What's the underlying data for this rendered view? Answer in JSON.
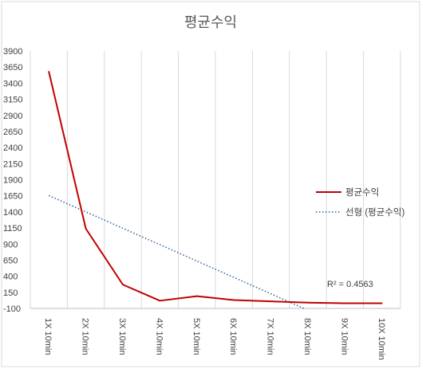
{
  "chart_data": {
    "type": "line",
    "title": "평균수익",
    "categories": [
      "1X 10min",
      "2X 10min",
      "3X 10min",
      "4X 10min",
      "5X 10min",
      "6X 10min",
      "7X 10min",
      "8X 10min",
      "9X 10min",
      "10X 10min"
    ],
    "series": [
      {
        "name": "평균수익",
        "values": [
          3580,
          1140,
          270,
          20,
          90,
          30,
          10,
          -10,
          -20,
          -20
        ],
        "color": "#c00000",
        "style": "solid"
      }
    ],
    "trendline": {
      "name": "선형 (평균수익)",
      "type": "linear",
      "color": "#2e5f9e",
      "style": "dotted",
      "r_squared_label": "R² = 0.4563"
    },
    "yticks": [
      -100,
      150,
      400,
      650,
      900,
      1150,
      1400,
      1650,
      1900,
      2150,
      2400,
      2650,
      2900,
      3150,
      3400,
      3650,
      3900
    ],
    "ylim": [
      -100,
      3900
    ],
    "grid": {
      "vertical": true,
      "horizontal": false
    },
    "legend_position": "right"
  }
}
